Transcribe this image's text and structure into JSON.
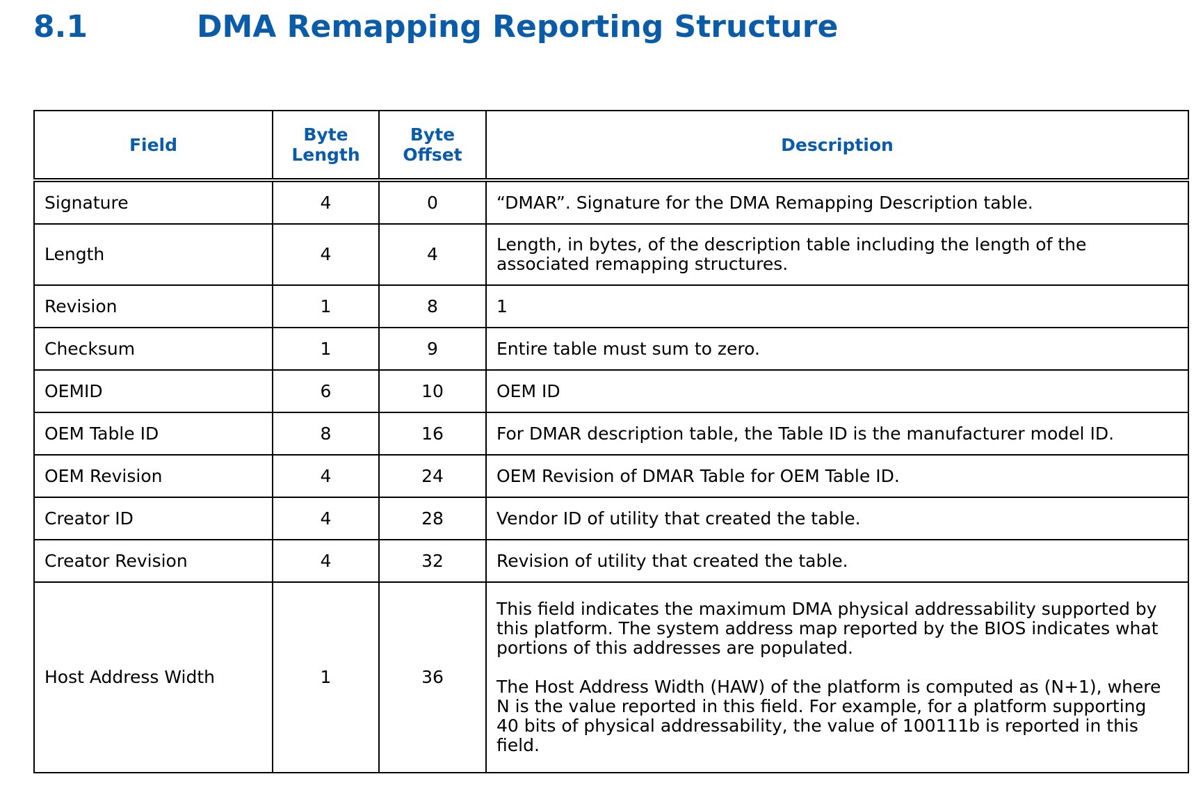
{
  "heading": {
    "number": "8.1",
    "title": "DMA Remapping Reporting Structure"
  },
  "table": {
    "headers": {
      "field": "Field",
      "byte_length": [
        "Byte",
        "Length"
      ],
      "byte_offset": [
        "Byte",
        "Offset"
      ],
      "description": "Description"
    },
    "rows": [
      {
        "field": "Signature",
        "length": "4",
        "offset": "0",
        "description": [
          "“DMAR”. Signature for the DMA Remapping Description table."
        ]
      },
      {
        "field": "Length",
        "length": "4",
        "offset": "4",
        "description": [
          "Length, in bytes, of the description table including the length of the",
          "associated remapping structures."
        ]
      },
      {
        "field": "Revision",
        "length": "1",
        "offset": "8",
        "description": [
          "1"
        ]
      },
      {
        "field": "Checksum",
        "length": "1",
        "offset": "9",
        "description": [
          "Entire table must sum to zero."
        ]
      },
      {
        "field": "OEMID",
        "length": "6",
        "offset": "10",
        "description": [
          "OEM ID"
        ]
      },
      {
        "field": "OEM Table ID",
        "length": "8",
        "offset": "16",
        "description": [
          "For DMAR description table, the Table ID is the manufacturer model ID."
        ]
      },
      {
        "field": "OEM Revision",
        "length": "4",
        "offset": "24",
        "description": [
          "OEM Revision of DMAR Table for OEM Table ID."
        ]
      },
      {
        "field": "Creator ID",
        "length": "4",
        "offset": "28",
        "description": [
          "Vendor ID of utility that created the table."
        ]
      },
      {
        "field": "Creator Revision",
        "length": "4",
        "offset": "32",
        "description": [
          "Revision of utility that created the table."
        ]
      },
      {
        "field": "Host Address Width",
        "length": "1",
        "offset": "36",
        "description_para1": [
          "This field indicates the maximum DMA physical addressability supported by",
          "this platform. The system address map reported by the BIOS indicates what",
          "portions of this addresses are populated."
        ],
        "description_para2": [
          "The Host Address Width (HAW) of the platform is computed as (N+1), where",
          "N is the value reported in this field. For example, for a platform supporting",
          "40 bits of physical addressability, the value of 100111b is reported in this",
          "field."
        ]
      }
    ]
  }
}
